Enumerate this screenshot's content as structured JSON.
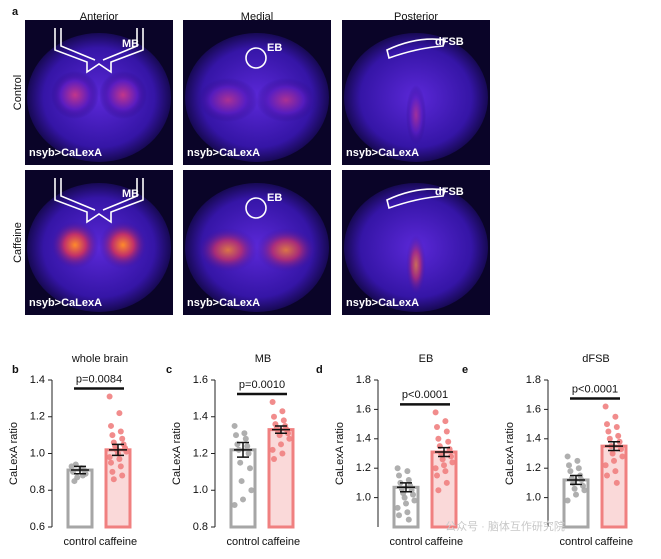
{
  "panel_a": {
    "label": "a",
    "columns": [
      "Anterior",
      "Medial",
      "Posterior"
    ],
    "rows": [
      "Control",
      "Caffeine"
    ],
    "images": [
      {
        "region": "MB",
        "genotype": "nsyb>CaLexA"
      },
      {
        "region": "EB",
        "genotype": "nsyb>CaLexA"
      },
      {
        "region": "dFSB",
        "genotype": "nsyb>CaLexA"
      },
      {
        "region": "MB",
        "genotype": "nsyb>CaLexA"
      },
      {
        "region": "EB",
        "genotype": "nsyb>CaLexA"
      },
      {
        "region": "dFSB",
        "genotype": "nsyb>CaLexA"
      }
    ]
  },
  "watermark": "公众号 · 脑体互作研究院",
  "chart_data": [
    {
      "type": "bar",
      "panel": "b",
      "title": "whole brain",
      "ylabel": "CaLexA ratio",
      "categories": [
        "control",
        "caffeine"
      ],
      "colors": [
        "#a6a6a6",
        "#f08080"
      ],
      "values": [
        0.91,
        1.02
      ],
      "errors": [
        0.02,
        0.03
      ],
      "points": [
        [
          0.93,
          0.92,
          0.9,
          0.88,
          0.85,
          0.91,
          0.94,
          0.89,
          0.87
        ],
        [
          1.31,
          1.22,
          1.15,
          1.12,
          1.1,
          1.08,
          1.06,
          1.05,
          1.04,
          1.03,
          1.02,
          1.01,
          1.0,
          0.98,
          0.97,
          0.95,
          0.93,
          0.9,
          0.88,
          0.86
        ]
      ],
      "annotation": "p=0.0084",
      "ylim": [
        0.6,
        1.4
      ],
      "yticks": [
        0.6,
        0.8,
        {
          "value": 1,
          "label": "1.0"
        },
        1.2,
        1.4
      ]
    },
    {
      "type": "bar",
      "panel": "c",
      "title": "MB",
      "ylabel": "CaLexA ratio",
      "categories": [
        "control",
        "caffeine"
      ],
      "colors": [
        "#a6a6a6",
        "#f08080"
      ],
      "values": [
        1.22,
        1.33
      ],
      "errors": [
        0.04,
        0.02
      ],
      "points": [
        [
          1.35,
          1.31,
          1.3,
          1.28,
          1.25,
          1.24,
          1.22,
          1.2,
          1.15,
          1.12,
          1.05,
          1.0,
          0.95,
          0.92
        ],
        [
          1.48,
          1.43,
          1.4,
          1.38,
          1.36,
          1.35,
          1.34,
          1.33,
          1.32,
          1.31,
          1.3,
          1.28,
          1.25,
          1.22,
          1.2,
          1.17
        ]
      ],
      "annotation": "p=0.0010",
      "ylim": [
        0.8,
        1.6
      ],
      "yticks": [
        0.8,
        {
          "value": 1,
          "label": "1.0"
        },
        1.2,
        1.4,
        1.6
      ]
    },
    {
      "type": "bar",
      "panel": "d",
      "title": "EB",
      "ylabel": "CaLexA ratio",
      "categories": [
        "control",
        "caffeine"
      ],
      "colors": [
        "#a6a6a6",
        "#f08080"
      ],
      "values": [
        1.07,
        1.31
      ],
      "errors": [
        0.03,
        0.03
      ],
      "points": [
        [
          1.2,
          1.18,
          1.15,
          1.12,
          1.1,
          1.08,
          1.06,
          1.05,
          1.03,
          1.02,
          1.0,
          0.98,
          0.96,
          0.93,
          0.9,
          0.88,
          0.85
        ],
        [
          1.58,
          1.52,
          1.48,
          1.45,
          1.4,
          1.38,
          1.35,
          1.33,
          1.3,
          1.28,
          1.26,
          1.24,
          1.22,
          1.2,
          1.18,
          1.15,
          1.1,
          1.05
        ]
      ],
      "annotation": "p<0.0001",
      "ylim": [
        0.8,
        1.8
      ],
      "yticks": [
        {
          "value": 1,
          "label": "1.0"
        },
        1.2,
        1.4,
        1.6,
        1.8
      ]
    },
    {
      "type": "bar",
      "panel": "e",
      "title": "dFSB",
      "ylabel": "CaLexA ratio",
      "categories": [
        "control",
        "caffeine"
      ],
      "colors": [
        "#a6a6a6",
        "#f08080"
      ],
      "values": [
        1.12,
        1.35
      ],
      "errors": [
        0.03,
        0.03
      ],
      "points": [
        [
          1.28,
          1.25,
          1.22,
          1.2,
          1.18,
          1.15,
          1.13,
          1.12,
          1.1,
          1.08,
          1.06,
          1.05,
          1.02,
          0.98
        ],
        [
          1.62,
          1.55,
          1.5,
          1.48,
          1.45,
          1.42,
          1.4,
          1.38,
          1.35,
          1.33,
          1.3,
          1.28,
          1.25,
          1.22,
          1.18,
          1.15,
          1.1
        ]
      ],
      "annotation": "p<0.0001",
      "ylim": [
        0.8,
        1.8
      ],
      "yticks": [
        {
          "value": 1,
          "label": "1.0"
        },
        1.2,
        1.4,
        1.6,
        1.8
      ]
    }
  ]
}
